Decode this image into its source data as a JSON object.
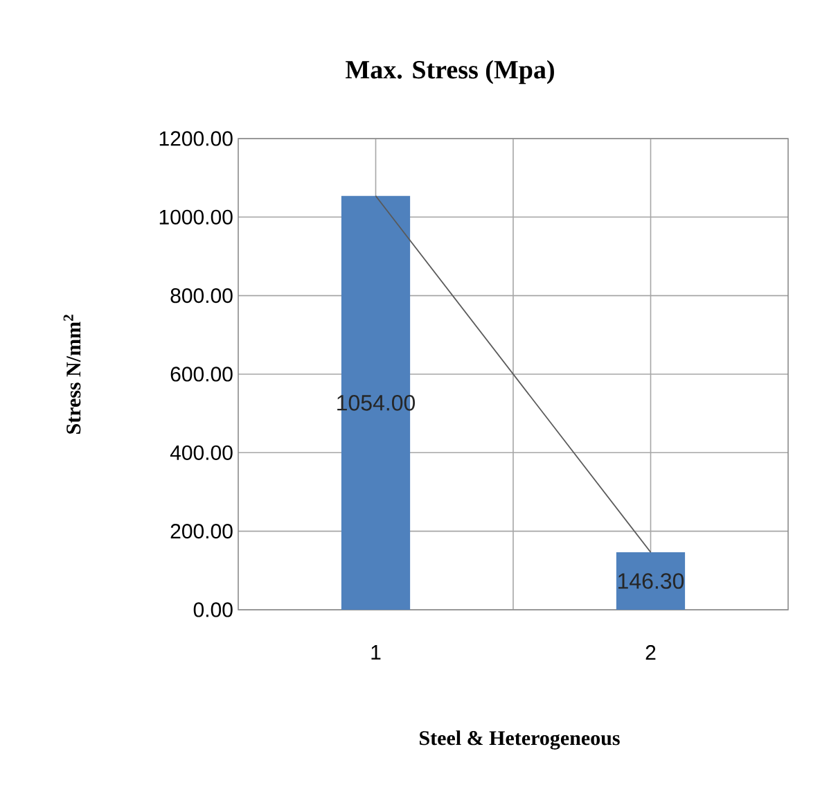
{
  "chart_data": {
    "type": "bar",
    "title": "Max. Stress (Mpa)",
    "xlabel": "Steel & Heterogeneous",
    "ylabel": "Stress N/mm$^{2}$",
    "categories": [
      "1",
      "2"
    ],
    "series": [
      {
        "color": "#4f81bd",
        "values": [
          1054,
          146.3
        ],
        "value_labels": [
          "1054.00",
          "146.30"
        ]
      },
      {
        "type": "line",
        "color": "#595959",
        "values": [
          1054,
          146.3
        ],
        "marker": "none"
      }
    ],
    "ylim": [
      0,
      1200
    ],
    "yticks": [
      {
        "value": 0,
        "label": "0.00"
      },
      {
        "value": 200,
        "label": "200.00"
      },
      {
        "value": 400,
        "label": "400.00"
      },
      {
        "value": 600,
        "label": "600.00"
      },
      {
        "value": 800,
        "label": "800.00"
      },
      {
        "value": 1000,
        "label": "1000.00"
      },
      {
        "value": 1200,
        "label": "1200.00"
      }
    ],
    "grid": true,
    "legend": false
  }
}
